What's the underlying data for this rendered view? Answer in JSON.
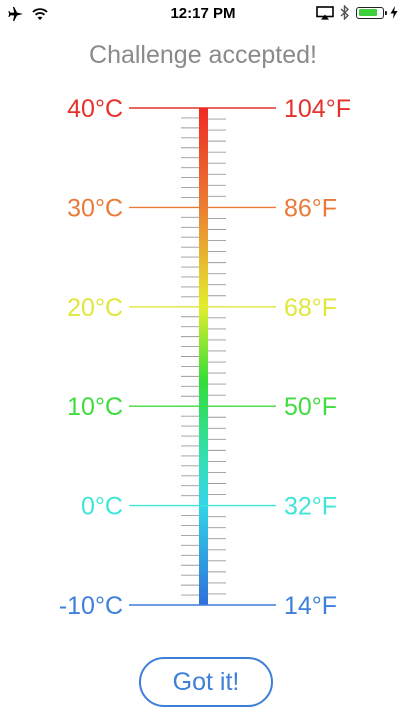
{
  "status_bar": {
    "time": "12:17 PM",
    "battery_level": 0.82
  },
  "title": "Challenge accepted!",
  "button_label": "Got it!",
  "thermometer": {
    "value_c": -10,
    "gradient": [
      {
        "stop": 0.0,
        "color": "#ee2a24"
      },
      {
        "stop": 0.2,
        "color": "#ec7e33"
      },
      {
        "stop": 0.4,
        "color": "#e3ee2a"
      },
      {
        "stop": 0.55,
        "color": "#33dd3a"
      },
      {
        "stop": 0.7,
        "color": "#31e0b0"
      },
      {
        "stop": 0.8,
        "color": "#31d6e8"
      },
      {
        "stop": 1.0,
        "color": "#2f6fd8"
      }
    ],
    "marks": [
      {
        "c": 40,
        "celsius": "40°C",
        "fahrenheit": "104°F",
        "color": "#e4312b"
      },
      {
        "c": 30,
        "celsius": "30°C",
        "fahrenheit": "86°F",
        "color": "#ea7a3a"
      },
      {
        "c": 20,
        "celsius": "20°C",
        "fahrenheit": "68°F",
        "color": "#dfe83a"
      },
      {
        "c": 10,
        "celsius": "10°C",
        "fahrenheit": "50°F",
        "color": "#3fdc3f"
      },
      {
        "c": 0,
        "celsius": "0°C",
        "fahrenheit": "32°F",
        "color": "#3fe6d8"
      },
      {
        "c": -10,
        "celsius": "-10°C",
        "fahrenheit": "14°F",
        "color": "#3d7fd9"
      }
    ]
  }
}
